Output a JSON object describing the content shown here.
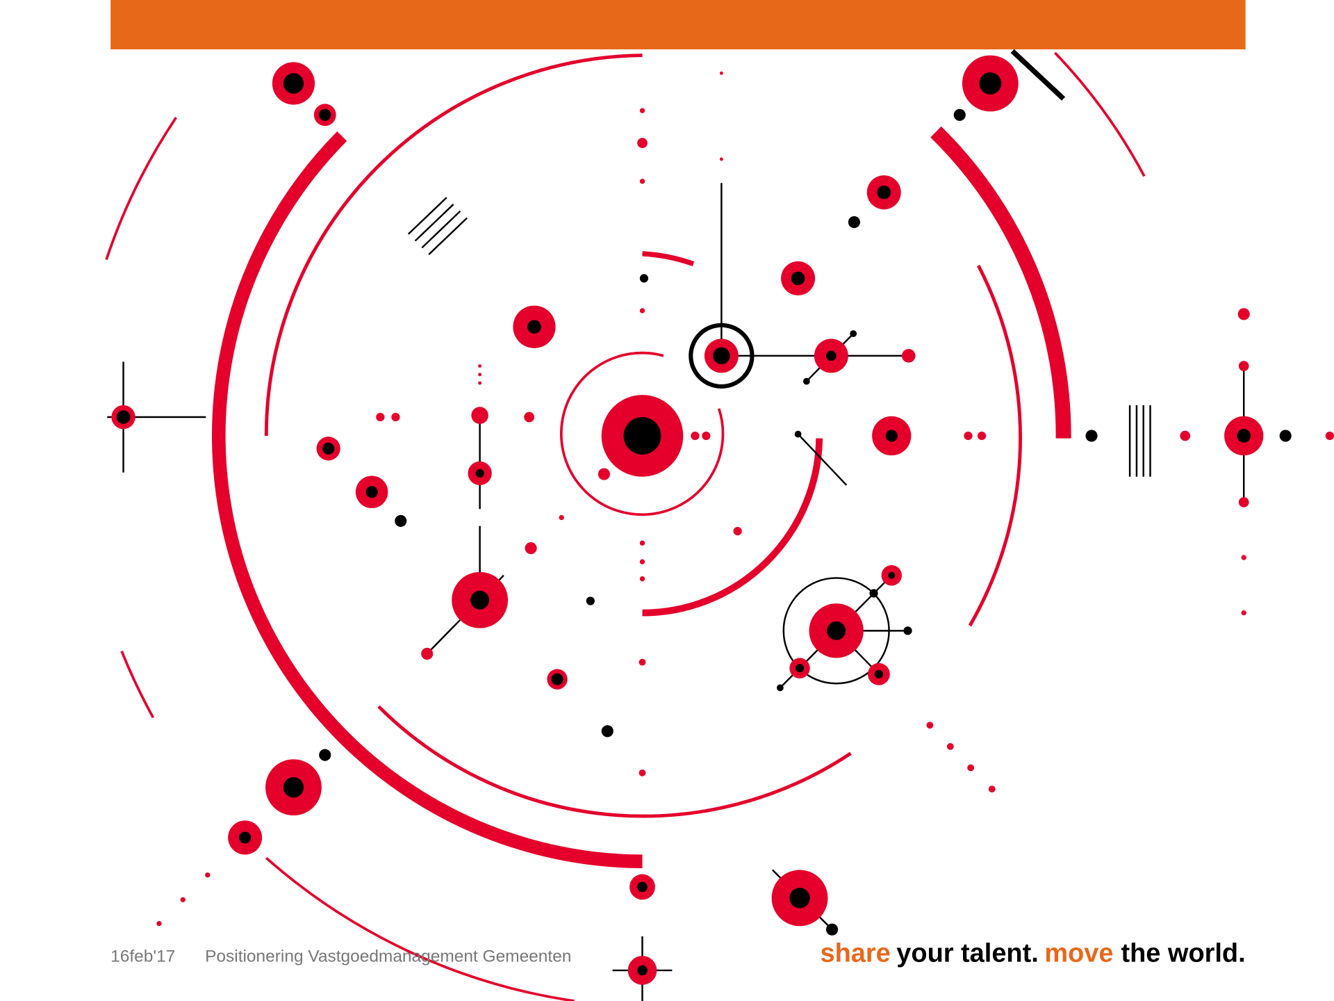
{
  "footer": {
    "date": "16feb'17",
    "title": "Positionering Vastgoedmanagement Gemeenten",
    "slogan": [
      "share",
      "your talent.",
      "move",
      "the world."
    ]
  }
}
